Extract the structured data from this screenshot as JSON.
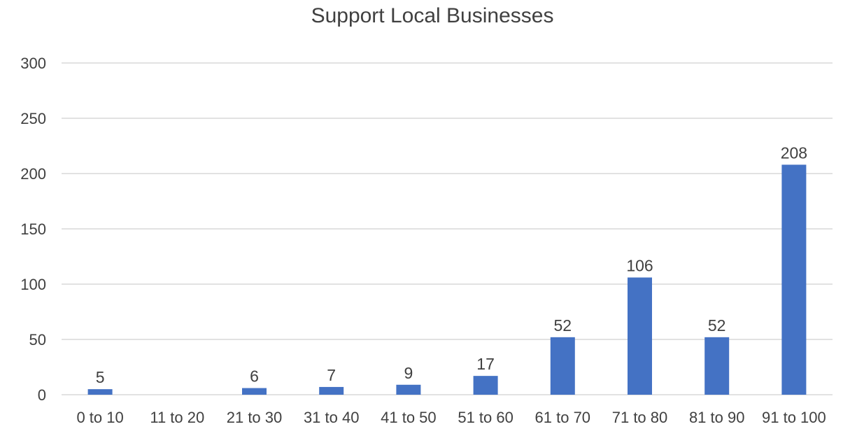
{
  "chart_data": {
    "type": "bar",
    "title": "Support Local Businesses",
    "xlabel": "",
    "ylabel": "",
    "categories": [
      "0 to 10",
      "11 to 20",
      "21 to 30",
      "31 to 40",
      "41 to 50",
      "51 to 60",
      "61 to 70",
      "71 to 80",
      "81 to 90",
      "91 to 100"
    ],
    "values": [
      5,
      0,
      6,
      7,
      9,
      17,
      52,
      106,
      52,
      208
    ],
    "data_labels": [
      "5",
      "",
      "6",
      "7",
      "9",
      "17",
      "52",
      "106",
      "52",
      "208"
    ],
    "ylim": [
      0,
      300
    ],
    "yticks": [
      0,
      50,
      100,
      150,
      200,
      250,
      300
    ],
    "grid": true,
    "legend": "none",
    "colors": {
      "bar": "#4472C4",
      "grid": "#d9d9d9",
      "text": "#404040"
    }
  }
}
